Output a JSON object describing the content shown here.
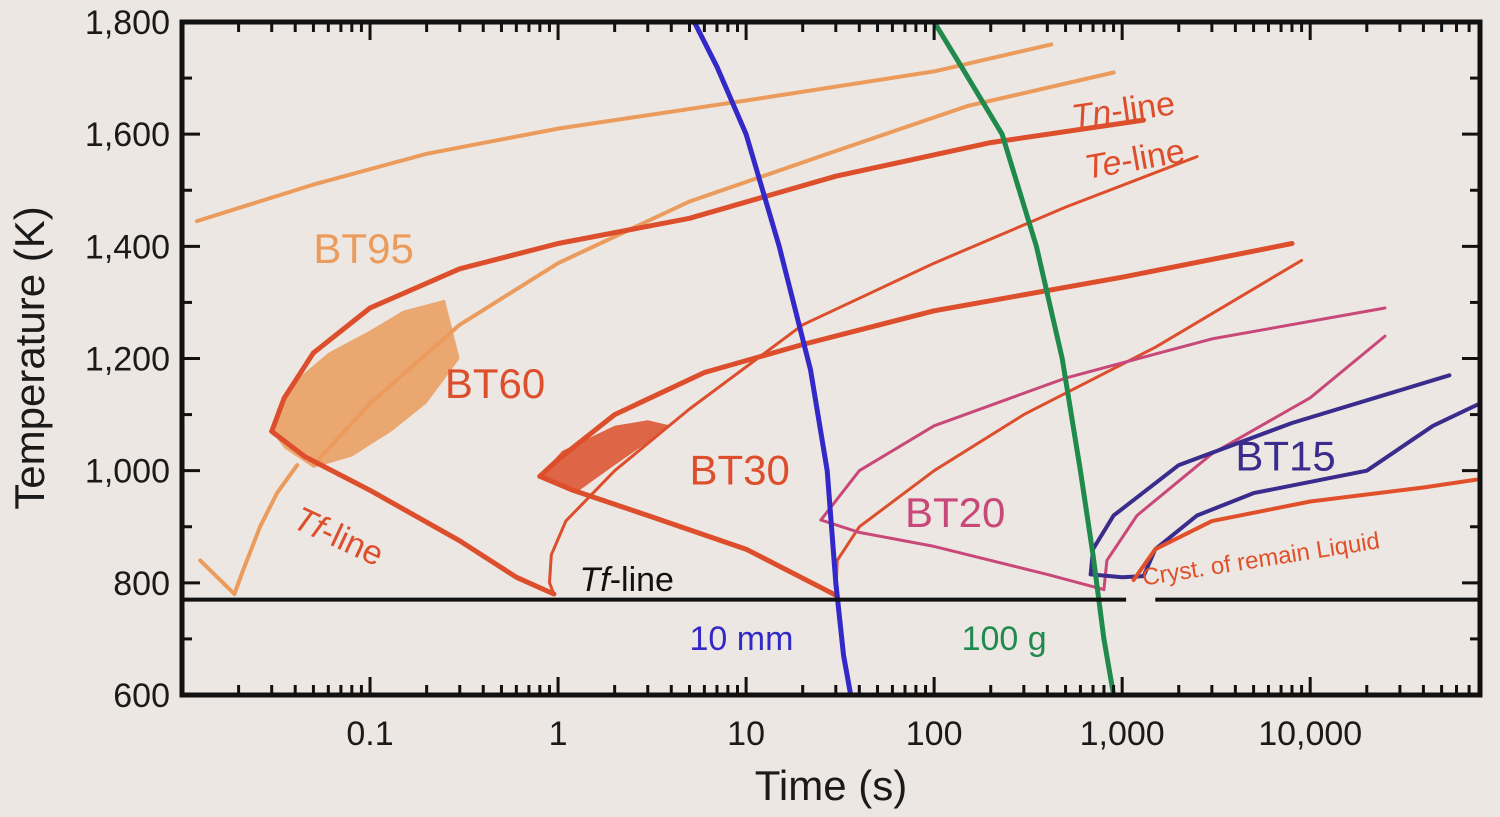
{
  "chart_data": {
    "type": "line",
    "xlabel": "Time (s)",
    "ylabel": "Temperature (K)",
    "x_scale": "log",
    "xlim": [
      0.01,
      80000
    ],
    "ylim": [
      600,
      1800
    ],
    "x_ticks": [
      {
        "value": 0.1,
        "label": "0.1"
      },
      {
        "value": 1,
        "label": "1"
      },
      {
        "value": 10,
        "label": "10"
      },
      {
        "value": 100,
        "label": "100"
      },
      {
        "value": 1000,
        "label": "1,000"
      },
      {
        "value": 10000,
        "label": "10,000"
      }
    ],
    "y_ticks": [
      {
        "value": 600,
        "label": "600"
      },
      {
        "value": 800,
        "label": "800"
      },
      {
        "value": 1000,
        "label": "1,000"
      },
      {
        "value": 1200,
        "label": "1,200"
      },
      {
        "value": 1400,
        "label": "1,400"
      },
      {
        "value": 1600,
        "label": "1,600"
      },
      {
        "value": 1800,
        "label": "1,800"
      }
    ],
    "colors": {
      "BT95": "#eb9b5c",
      "BT60": "#dd4e2c",
      "BT30": "#dd4e2c",
      "BT20": "#c8487a",
      "BT15": "#3a2c8c",
      "cryst": "#e0502a",
      "tf": "#111111",
      "mm10": "#3328c8",
      "g100": "#1f8a4c"
    },
    "series": [
      {
        "name": "BT95",
        "color_key": "BT95",
        "width": 4,
        "points": [
          [
            0.012,
            1445
          ],
          [
            0.05,
            1510
          ],
          [
            0.2,
            1565
          ],
          [
            1,
            1610
          ],
          [
            10,
            1660
          ],
          [
            100,
            1712
          ],
          [
            420,
            1760
          ]
        ]
      },
      {
        "name": "BT95",
        "color_key": "BT95",
        "width": 4,
        "points": [
          [
            0.05,
            1010
          ],
          [
            0.1,
            1120
          ],
          [
            0.3,
            1260
          ],
          [
            1,
            1370
          ],
          [
            5,
            1480
          ],
          [
            30,
            1570
          ],
          [
            150,
            1650
          ],
          [
            900,
            1710
          ]
        ]
      },
      {
        "name": "BT95",
        "color_key": "BT95",
        "width": 4,
        "points": [
          [
            0.0125,
            840
          ],
          [
            0.019,
            780
          ]
        ]
      },
      {
        "name": "BT95",
        "color_key": "BT95",
        "width": 4,
        "points": [
          [
            0.019,
            780
          ],
          [
            0.021,
            820
          ],
          [
            0.026,
            900
          ],
          [
            0.032,
            960
          ],
          [
            0.041,
            1010
          ]
        ]
      },
      {
        "name": "BT60",
        "color_key": "BT60",
        "width": 5,
        "points": [
          [
            0.03,
            1070
          ],
          [
            0.035,
            1130
          ],
          [
            0.05,
            1210
          ],
          [
            0.1,
            1290
          ],
          [
            0.3,
            1360
          ],
          [
            1,
            1405
          ],
          [
            5,
            1450
          ],
          [
            30,
            1525
          ],
          [
            200,
            1585
          ],
          [
            1300,
            1625
          ]
        ]
      },
      {
        "name": "BT60",
        "color_key": "BT60",
        "width": 5,
        "points": [
          [
            0.03,
            1070
          ],
          [
            0.045,
            1025
          ],
          [
            0.1,
            965
          ],
          [
            0.3,
            875
          ],
          [
            0.6,
            810
          ],
          [
            0.95,
            780
          ]
        ]
      },
      {
        "name": "BT60",
        "color_key": "BT60",
        "width": 3,
        "points": [
          [
            0.95,
            780
          ],
          [
            0.9,
            800
          ],
          [
            0.92,
            850
          ],
          [
            1.1,
            910
          ],
          [
            2,
            1000
          ],
          [
            5,
            1110
          ],
          [
            20,
            1260
          ],
          [
            100,
            1370
          ],
          [
            500,
            1470
          ],
          [
            2500,
            1560
          ]
        ]
      },
      {
        "name": "BT30",
        "color_key": "BT30",
        "width": 5,
        "points": [
          [
            0.8,
            990
          ],
          [
            1,
            1020
          ],
          [
            2,
            1100
          ],
          [
            6,
            1175
          ],
          [
            20,
            1225
          ],
          [
            100,
            1285
          ],
          [
            1000,
            1345
          ],
          [
            8000,
            1405
          ]
        ]
      },
      {
        "name": "BT30",
        "color_key": "BT30",
        "width": 5,
        "points": [
          [
            0.8,
            990
          ],
          [
            1.2,
            965
          ],
          [
            3,
            920
          ],
          [
            10,
            860
          ],
          [
            30,
            778
          ]
        ]
      },
      {
        "name": "BT30",
        "color_key": "BT30",
        "width": 3,
        "points": [
          [
            30,
            778
          ],
          [
            30.5,
            840
          ],
          [
            40,
            900
          ],
          [
            100,
            1000
          ],
          [
            300,
            1100
          ],
          [
            1500,
            1220
          ],
          [
            9000,
            1375
          ]
        ]
      },
      {
        "name": "BT20",
        "color_key": "BT20",
        "width": 3,
        "points": [
          [
            25,
            912
          ],
          [
            40,
            1000
          ],
          [
            100,
            1080
          ],
          [
            500,
            1165
          ],
          [
            3000,
            1235
          ],
          [
            25000,
            1290
          ]
        ]
      },
      {
        "name": "BT20",
        "color_key": "BT20",
        "width": 3,
        "points": [
          [
            25,
            912
          ],
          [
            40,
            890
          ],
          [
            100,
            865
          ],
          [
            400,
            815
          ],
          [
            800,
            788
          ]
        ]
      },
      {
        "name": "BT20",
        "color_key": "BT20",
        "width": 3,
        "points": [
          [
            800,
            788
          ],
          [
            830,
            840
          ],
          [
            1200,
            920
          ],
          [
            3000,
            1030
          ],
          [
            10000,
            1130
          ],
          [
            25000,
            1240
          ]
        ]
      },
      {
        "name": "BT15",
        "color_key": "BT15",
        "width": 4,
        "points": [
          [
            680,
            815
          ],
          [
            700,
            860
          ],
          [
            900,
            920
          ],
          [
            2000,
            1010
          ],
          [
            8000,
            1085
          ],
          [
            55000,
            1170
          ]
        ]
      },
      {
        "name": "BT15",
        "color_key": "BT15",
        "width": 4,
        "points": [
          [
            680,
            815
          ],
          [
            1000,
            810
          ],
          [
            1300,
            812
          ]
        ]
      },
      {
        "name": "BT15",
        "color_key": "BT15",
        "width": 4,
        "points": [
          [
            1300,
            812
          ],
          [
            1500,
            860
          ],
          [
            2500,
            920
          ],
          [
            5000,
            960
          ],
          [
            20000,
            1000
          ],
          [
            45000,
            1080
          ],
          [
            80000,
            1120
          ]
        ]
      },
      {
        "name": "Cryst. of remain Liquid",
        "color_key": "cryst",
        "width": 4,
        "points": [
          [
            1150,
            805
          ],
          [
            1500,
            860
          ],
          [
            3000,
            910
          ],
          [
            10000,
            945
          ],
          [
            40000,
            970
          ],
          [
            80000,
            985
          ]
        ]
      },
      {
        "name": "10 mm",
        "color_key": "mm10",
        "width": 5,
        "points": [
          [
            5.3,
            1800
          ],
          [
            7,
            1720
          ],
          [
            10,
            1600
          ],
          [
            15,
            1400
          ],
          [
            22,
            1180
          ],
          [
            27,
            1000
          ],
          [
            30,
            800
          ],
          [
            33,
            670
          ],
          [
            36,
            600
          ]
        ]
      },
      {
        "name": "100 g",
        "color_key": "g100",
        "width": 5,
        "points": [
          [
            100,
            1800
          ],
          [
            140,
            1720
          ],
          [
            230,
            1600
          ],
          [
            350,
            1400
          ],
          [
            480,
            1200
          ],
          [
            600,
            1000
          ],
          [
            700,
            850
          ],
          [
            800,
            700
          ],
          [
            900,
            600
          ]
        ]
      }
    ],
    "tf_line": {
      "y": 770,
      "x_start": 0.01,
      "x_end": 80000,
      "gap": [
        1050,
        1500
      ]
    },
    "annotations": [
      {
        "text": "BT95",
        "x": 0.05,
        "y": 1370,
        "size": 42,
        "color_key": "BT95",
        "rotate": 0,
        "italic_prefix": ""
      },
      {
        "text": "BT60",
        "x": 0.25,
        "y": 1130,
        "size": 42,
        "color_key": "BT60",
        "rotate": 0,
        "italic_prefix": ""
      },
      {
        "text": "BT30",
        "x": 5,
        "y": 975,
        "size": 42,
        "color_key": "BT30",
        "rotate": 0,
        "italic_prefix": ""
      },
      {
        "text": "BT20",
        "x": 70,
        "y": 900,
        "size": 42,
        "color_key": "BT20",
        "rotate": 0,
        "italic_prefix": ""
      },
      {
        "text": "BT15",
        "x": 4000,
        "y": 1000,
        "size": 42,
        "color_key": "BT15",
        "rotate": 0,
        "italic_prefix": ""
      },
      {
        "text": "-line",
        "x": 550,
        "y": 1610,
        "size": 34,
        "color_key": "BT60",
        "rotate": -8,
        "italic_prefix": "Tn"
      },
      {
        "text": "-line",
        "x": 650,
        "y": 1520,
        "size": 34,
        "color_key": "BT60",
        "rotate": -10,
        "italic_prefix": "Te"
      },
      {
        "text": "-line",
        "x": 0.038,
        "y": 900,
        "size": 34,
        "color_key": "BT60",
        "rotate": 25,
        "italic_prefix": "Tf"
      },
      {
        "text": "-line",
        "x": 1.3,
        "y": 785,
        "size": 34,
        "color_key": "tf",
        "rotate": 0,
        "italic_prefix": "Tf"
      },
      {
        "text": "10 mm",
        "x": 5,
        "y": 680,
        "size": 34,
        "color_key": "mm10",
        "rotate": 0,
        "italic_prefix": ""
      },
      {
        "text": "100 g",
        "x": 140,
        "y": 680,
        "size": 34,
        "color_key": "g100",
        "rotate": 0,
        "italic_prefix": ""
      },
      {
        "text": "Cryst. of remain Liquid",
        "x": 1300,
        "y": 795,
        "size": 24,
        "color_key": "cryst",
        "rotate": -9,
        "italic_prefix": ""
      }
    ],
    "shaded_regions": [
      {
        "color_key": "BT95",
        "points": [
          [
            0.03,
            1070
          ],
          [
            0.032,
            1110
          ],
          [
            0.04,
            1160
          ],
          [
            0.06,
            1210
          ],
          [
            0.1,
            1250
          ],
          [
            0.15,
            1285
          ],
          [
            0.25,
            1305
          ],
          [
            0.3,
            1200
          ],
          [
            0.2,
            1120
          ],
          [
            0.13,
            1070
          ],
          [
            0.08,
            1025
          ],
          [
            0.05,
            1005
          ],
          [
            0.035,
            1040
          ]
        ]
      },
      {
        "color_key": "BT30",
        "points": [
          [
            0.8,
            990
          ],
          [
            1.05,
            1035
          ],
          [
            2,
            1080
          ],
          [
            3,
            1090
          ],
          [
            4,
            1080
          ],
          [
            2,
            1010
          ],
          [
            1.3,
            965
          ]
        ]
      }
    ]
  }
}
